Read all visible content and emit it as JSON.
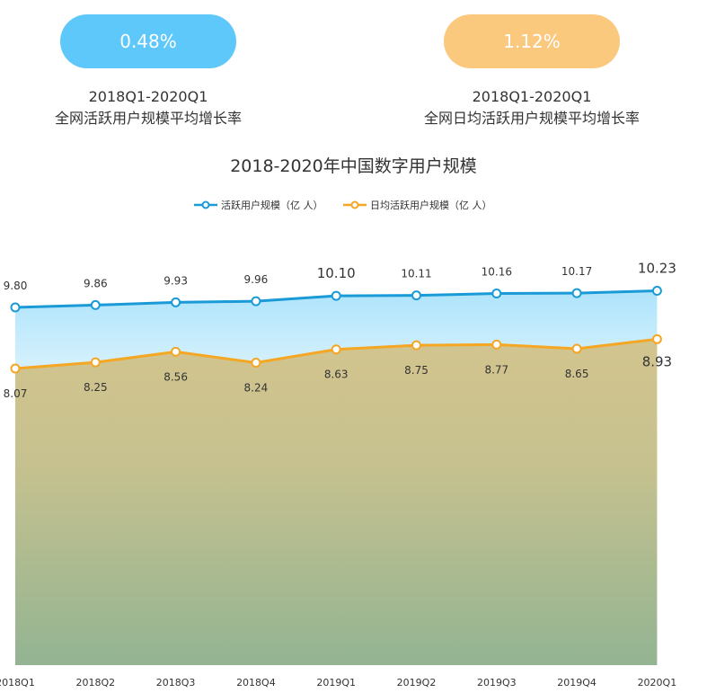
{
  "kpis": [
    {
      "value": "0.48%",
      "period": "2018Q1-2020Q1",
      "label": "全网活跃用户规模平均增长率",
      "color": "#5ec8fb"
    },
    {
      "value": "1.12%",
      "period": "2018Q1-2020Q1",
      "label": "全网日均活跃用户规模平均增长率",
      "color": "#fbc97e"
    }
  ],
  "chart_data": {
    "type": "line",
    "title": "2018-2020年中国数字用户规模",
    "categories": [
      "2018Q1",
      "2018Q2",
      "2018Q3",
      "2018Q4",
      "2019Q1",
      "2019Q2",
      "2019Q3",
      "2019Q4",
      "2020Q1"
    ],
    "series": [
      {
        "name": "活跃用户规模（亿 人）",
        "color": "#1a9ad6",
        "values": [
          9.8,
          9.86,
          9.93,
          9.96,
          10.1,
          10.11,
          10.16,
          10.17,
          10.23
        ],
        "labels": [
          "9.80",
          "9.86",
          "9.93",
          "9.96",
          "10.10",
          "10.11",
          "10.16",
          "10.17",
          "10.23"
        ]
      },
      {
        "name": "日均活跃用户规模（亿 人）",
        "color": "#f5a623",
        "values": [
          8.07,
          8.25,
          8.56,
          8.24,
          8.63,
          8.75,
          8.77,
          8.65,
          8.93
        ],
        "labels": [
          "8.07",
          "8.25",
          "8.56",
          "8.24",
          "8.63",
          "8.75",
          "8.77",
          "8.65",
          "8.93"
        ]
      }
    ],
    "legend": "top",
    "grid": false
  }
}
